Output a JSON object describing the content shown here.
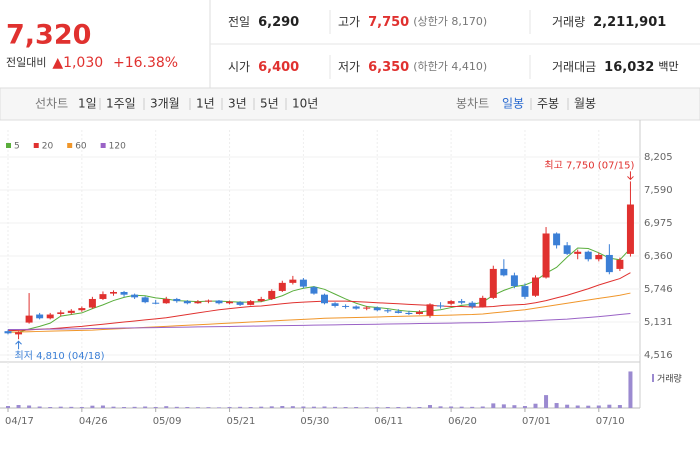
{
  "header": {
    "price": "7,320",
    "change_label": "전일대비",
    "change": "▲1,030",
    "change_pct": "+16.38%",
    "stats": [
      {
        "label": "전일",
        "value": "6,290",
        "color": "#222222"
      },
      {
        "label": "고가",
        "value": "7,750",
        "note": "(상한가 8,170)",
        "color": "#e0312f"
      },
      {
        "label": "거래량",
        "value": "2,211,901",
        "color": "#222222"
      },
      {
        "label": "시가",
        "value": "6,400",
        "color": "#e0312f"
      },
      {
        "label": "저가",
        "value": "6,350",
        "note": "(하한가 4,410)",
        "color": "#e0312f"
      },
      {
        "label": "거래대금",
        "value": "16,032",
        "note": "백만",
        "color": "#222222"
      }
    ]
  },
  "toolbar": {
    "line_chart": "선차트",
    "periods": [
      "1일",
      "1주일",
      "3개월",
      "1년",
      "3년",
      "5년",
      "10년"
    ],
    "candle_chart": "봉차트",
    "candle_periods": [
      "일봉",
      "주봉",
      "월봉"
    ]
  },
  "chart_data": {
    "type": "candlestick",
    "categories": [
      "04/17",
      null,
      null,
      null,
      null,
      null,
      null,
      "04/26",
      null,
      null,
      null,
      null,
      null,
      null,
      "05/09",
      null,
      null,
      null,
      null,
      null,
      null,
      "05/21",
      null,
      null,
      null,
      null,
      null,
      null,
      "05/30",
      null,
      null,
      null,
      null,
      null,
      null,
      "06/11",
      null,
      null,
      null,
      null,
      null,
      null,
      "06/20",
      null,
      null,
      null,
      null,
      null,
      null,
      "07/01",
      null,
      null,
      null,
      null,
      null,
      null,
      "07/10",
      null,
      null,
      null
    ],
    "open": [
      4960,
      4900,
      5120,
      5270,
      5200,
      5280,
      5300,
      5350,
      5400,
      5560,
      5660,
      5690,
      5640,
      5590,
      5490,
      5480,
      5560,
      5520,
      5480,
      5510,
      5530,
      5480,
      5500,
      5450,
      5520,
      5560,
      5710,
      5860,
      5920,
      5780,
      5640,
      5480,
      5430,
      5420,
      5380,
      5400,
      5350,
      5330,
      5300,
      5280,
      5250,
      5440,
      5470,
      5520,
      5490,
      5420,
      5580,
      6120,
      6000,
      5800,
      5620,
      5960,
      6780,
      6560,
      6400,
      6440,
      6300,
      6380,
      6120,
      6400
    ],
    "high": [
      4990,
      4960,
      5670,
      5300,
      5300,
      5350,
      5370,
      5420,
      5600,
      5700,
      5720,
      5710,
      5660,
      5610,
      5540,
      5600,
      5580,
      5540,
      5540,
      5550,
      5540,
      5530,
      5520,
      5540,
      5600,
      5740,
      5900,
      5990,
      5950,
      5800,
      5660,
      5500,
      5460,
      5440,
      5430,
      5420,
      5380,
      5370,
      5340,
      5350,
      5480,
      5500,
      5540,
      5560,
      5520,
      5620,
      6180,
      6300,
      6050,
      5850,
      6000,
      6900,
      6800,
      6620,
      6480,
      6460,
      6420,
      6580,
      6330,
      7750
    ],
    "low": [
      4900,
      4810,
      5100,
      5180,
      5180,
      5240,
      5270,
      5320,
      5380,
      5540,
      5620,
      5600,
      5560,
      5480,
      5460,
      5470,
      5490,
      5460,
      5470,
      5480,
      5460,
      5460,
      5430,
      5440,
      5500,
      5540,
      5690,
      5830,
      5760,
      5640,
      5460,
      5400,
      5380,
      5360,
      5350,
      5330,
      5300,
      5290,
      5260,
      5270,
      5210,
      5380,
      5440,
      5460,
      5380,
      5400,
      5560,
      5980,
      5760,
      5560,
      5600,
      5940,
      6500,
      6380,
      6300,
      6260,
      6260,
      6020,
      6080,
      6350
    ],
    "close": [
      4920,
      4940,
      5250,
      5200,
      5270,
      5310,
      5340,
      5390,
      5560,
      5650,
      5690,
      5640,
      5590,
      5500,
      5480,
      5560,
      5520,
      5480,
      5510,
      5530,
      5480,
      5510,
      5450,
      5520,
      5560,
      5710,
      5860,
      5920,
      5790,
      5660,
      5480,
      5430,
      5420,
      5380,
      5400,
      5350,
      5330,
      5300,
      5280,
      5320,
      5460,
      5420,
      5520,
      5490,
      5420,
      5580,
      6120,
      6000,
      5800,
      5600,
      5960,
      6780,
      6560,
      6400,
      6440,
      6300,
      6380,
      6060,
      6290,
      7320
    ],
    "up_color": "#e0312f",
    "down_color": "#3b7fd6",
    "series": [
      {
        "name": "5",
        "color": "#5aae3c",
        "values": [
          4950,
          4940,
          5000,
          5050,
          5110,
          5240,
          5270,
          5300,
          5380,
          5450,
          5530,
          5590,
          5630,
          5620,
          5580,
          5560,
          5530,
          5520,
          5510,
          5520,
          5520,
          5510,
          5500,
          5500,
          5510,
          5560,
          5620,
          5710,
          5760,
          5790,
          5740,
          5650,
          5560,
          5480,
          5420,
          5400,
          5380,
          5350,
          5330,
          5320,
          5340,
          5360,
          5400,
          5440,
          5460,
          5500,
          5630,
          5720,
          5790,
          5820,
          5900,
          6040,
          6150,
          6340,
          6510,
          6500,
          6420,
          6320,
          6290,
          6500
        ]
      },
      {
        "name": "20",
        "color": "#e0312f",
        "values": [
          4970,
          4975,
          4985,
          4995,
          5005,
          5020,
          5035,
          5050,
          5070,
          5090,
          5110,
          5130,
          5150,
          5170,
          5190,
          5210,
          5240,
          5270,
          5300,
          5330,
          5360,
          5380,
          5400,
          5420,
          5430,
          5450,
          5470,
          5490,
          5500,
          5510,
          5520,
          5520,
          5520,
          5510,
          5500,
          5490,
          5480,
          5470,
          5460,
          5450,
          5440,
          5430,
          5420,
          5420,
          5410,
          5410,
          5420,
          5440,
          5450,
          5460,
          5490,
          5530,
          5580,
          5630,
          5690,
          5750,
          5820,
          5880,
          5940,
          6050
        ]
      },
      {
        "name": "60",
        "color": "#f0962a",
        "values": [
          4940,
          4945,
          4950,
          4955,
          4960,
          4965,
          4970,
          4975,
          4980,
          4990,
          5000,
          5010,
          5020,
          5030,
          5040,
          5050,
          5060,
          5070,
          5080,
          5090,
          5100,
          5110,
          5120,
          5130,
          5140,
          5150,
          5160,
          5170,
          5180,
          5190,
          5200,
          5205,
          5210,
          5215,
          5220,
          5225,
          5230,
          5235,
          5240,
          5245,
          5250,
          5255,
          5260,
          5265,
          5270,
          5280,
          5300,
          5320,
          5340,
          5360,
          5390,
          5420,
          5450,
          5480,
          5510,
          5540,
          5570,
          5600,
          5630,
          5670
        ]
      },
      {
        "name": "120",
        "color": "#9a63c6",
        "values": [
          4990,
          4992,
          4994,
          4996,
          4998,
          5000,
          5003,
          5006,
          5009,
          5012,
          5015,
          5018,
          5021,
          5024,
          5027,
          5030,
          5033,
          5036,
          5039,
          5042,
          5045,
          5048,
          5051,
          5054,
          5057,
          5060,
          5063,
          5066,
          5069,
          5072,
          5075,
          5078,
          5081,
          5084,
          5087,
          5090,
          5093,
          5096,
          5099,
          5102,
          5105,
          5108,
          5111,
          5114,
          5117,
          5120,
          5127,
          5134,
          5141,
          5148,
          5155,
          5165,
          5175,
          5185,
          5200,
          5215,
          5230,
          5250,
          5270,
          5290
        ]
      }
    ],
    "ylim": [
      4516,
      8205
    ],
    "yticks": [
      {
        "value": 8205,
        "label": "8,205"
      },
      {
        "value": 7590,
        "label": "7,590"
      },
      {
        "value": 6975,
        "label": "6,975"
      },
      {
        "value": 6360,
        "label": "6,360"
      },
      {
        "value": 5746,
        "label": "5,746"
      },
      {
        "value": 5131,
        "label": "5,131"
      },
      {
        "value": 4516,
        "label": "4,516"
      }
    ],
    "volume": {
      "name": "거래량",
      "color": "#9b8ad0",
      "ylim": [
        0,
        2300000
      ],
      "values": [
        120000,
        180000,
        150000,
        90000,
        60000,
        80000,
        70000,
        60000,
        140000,
        150000,
        80000,
        60000,
        70000,
        90000,
        60000,
        110000,
        70000,
        60000,
        50000,
        50000,
        40000,
        60000,
        70000,
        60000,
        80000,
        100000,
        120000,
        110000,
        90000,
        80000,
        90000,
        70000,
        60000,
        60000,
        50000,
        50000,
        60000,
        60000,
        70000,
        60000,
        180000,
        100000,
        90000,
        80000,
        70000,
        90000,
        280000,
        220000,
        170000,
        120000,
        260000,
        780000,
        300000,
        200000,
        150000,
        140000,
        150000,
        200000,
        180000,
        2211901
      ]
    },
    "annotations": {
      "max": "최고 7,750 (07/15)",
      "min": "최저 4,810 (04/18)"
    }
  }
}
